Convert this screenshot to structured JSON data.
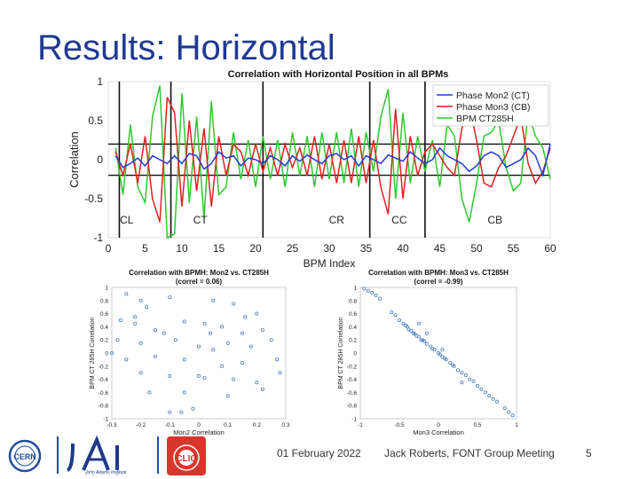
{
  "slide": {
    "title": "Results: Horizontal",
    "footer_date": "01 February 2022",
    "footer_meeting": "Jack Roberts, FONT Group Meeting",
    "page_number": "5",
    "logos": [
      "CERN",
      "JAI John Adams Institute for Accelerator Science",
      "CLIC"
    ]
  },
  "chart_data": [
    {
      "type": "line",
      "title": "Correlation with Horizontal Position in all BPMs",
      "xlabel": "BPM Index",
      "ylabel": "Correlation",
      "xlim": [
        0,
        60
      ],
      "ylim": [
        -1,
        1
      ],
      "xticks": [
        "0",
        "5",
        "10",
        "15",
        "20",
        "25",
        "30",
        "35",
        "40",
        "45",
        "50",
        "55",
        "60"
      ],
      "yticks": [
        "1",
        "0.5",
        "0",
        "-0.5",
        "-1"
      ],
      "grid": false,
      "legend": "top-right",
      "colors": {
        "Phase Mon2 (CT)": "#1f3fd1",
        "Phase Mon3 (CB)": "#e02020",
        "BPM CT285H": "#2ec82e"
      },
      "section_labels": [
        "CL",
        "CT",
        "CR",
        "CC",
        "CB"
      ],
      "section_boundaries": [
        1.5,
        8.5,
        21,
        35.5,
        43
      ],
      "threshold_lines": [
        0.2,
        -0.2
      ],
      "x": [
        1,
        2,
        3,
        4,
        5,
        6,
        7,
        8,
        9,
        10,
        11,
        12,
        13,
        14,
        15,
        16,
        17,
        18,
        19,
        20,
        21,
        22,
        23,
        24,
        25,
        26,
        27,
        28,
        29,
        30,
        31,
        32,
        33,
        34,
        35,
        36,
        37,
        38,
        39,
        40,
        41,
        42,
        43,
        44,
        45,
        46,
        47,
        48,
        49,
        50,
        51,
        52,
        53,
        54,
        55,
        56,
        57,
        58,
        59,
        60
      ],
      "series": [
        {
          "name": "Phase Mon2 (CT)",
          "values": [
            0.05,
            -0.1,
            -0.05,
            0.02,
            -0.08,
            0.05,
            0.0,
            -0.05,
            0.05,
            -0.05,
            0.08,
            0.05,
            -0.12,
            -0.05,
            0.1,
            0.02,
            0.05,
            -0.08,
            0.02,
            0.0,
            -0.05,
            0.05,
            0.0,
            -0.08,
            0.05,
            -0.02,
            0.06,
            0.0,
            -0.05,
            0.05,
            0.08,
            0.0,
            0.05,
            -0.08,
            0.05,
            0.0,
            -0.05,
            0.06,
            0.02,
            -0.02,
            0.1,
            0.02,
            -0.05,
            0.0,
            0.15,
            0.05,
            0.0,
            -0.05,
            -0.15,
            -0.08,
            0.05,
            0.1,
            0.05,
            -0.1,
            -0.05,
            0.0,
            0.15,
            0.05,
            -0.2,
            0.2
          ]
        },
        {
          "name": "Phase Mon3 (CB)",
          "values": [
            0.1,
            -0.2,
            0.2,
            -0.3,
            0.3,
            -0.5,
            -0.8,
            0.8,
            0.6,
            -0.6,
            0.5,
            -0.4,
            0.4,
            -0.6,
            0.3,
            -0.2,
            0.2,
            0.1,
            -0.2,
            0.2,
            -0.15,
            0.15,
            -0.2,
            0.2,
            -0.1,
            0.15,
            -0.2,
            0.3,
            -0.25,
            0.2,
            -0.3,
            0.25,
            -0.3,
            0.3,
            -0.3,
            0.25,
            -0.35,
            -0.7,
            0.65,
            -0.5,
            0.3,
            -0.2,
            0.1,
            0.2,
            0.05,
            -0.1,
            -0.2,
            0.4,
            0.7,
            0.25,
            -0.3,
            -0.35,
            -0.1,
            0.05,
            0.3,
            0.55,
            -0.05,
            -0.3,
            -0.15,
            0.15
          ]
        },
        {
          "name": "BPM CT285H",
          "values": [
            0.15,
            -0.45,
            0.45,
            -0.35,
            -0.55,
            0.55,
            0.95,
            -1.0,
            -0.95,
            0.85,
            -0.55,
            0.55,
            -0.75,
            0.75,
            -0.45,
            -0.35,
            0.35,
            -0.25,
            0.25,
            -0.35,
            0.3,
            -0.25,
            0.25,
            -0.35,
            0.35,
            -0.2,
            0.3,
            -0.35,
            0.35,
            -0.25,
            0.35,
            -0.3,
            0.4,
            -0.35,
            0.35,
            -0.15,
            0.55,
            0.9,
            -0.5,
            0.6,
            -0.3,
            0.3,
            -0.15,
            0.25,
            -0.35,
            0.45,
            0.3,
            -0.5,
            -0.8,
            -0.3,
            0.3,
            0.35,
            0.5,
            -0.1,
            -0.4,
            -0.3,
            0.6,
            0.3,
            0.15,
            -0.25
          ]
        }
      ]
    },
    {
      "type": "scatter",
      "title": "Correlation with BPMH: Mon2 vs. CT285H",
      "subtitle": "(correl = 0.06)",
      "xlabel": "Mon2 Correlation",
      "ylabel": "BPM CT 285H Correlation",
      "xlim": [
        -0.3,
        0.3
      ],
      "ylim": [
        -1,
        1
      ],
      "xticks": [
        "-0.3",
        "-0.2",
        "-0.1",
        "0",
        "0.1",
        "0.2",
        "0.3"
      ],
      "yticks": [
        "1",
        "0.8",
        "0.6",
        "0.4",
        "0.2",
        "0",
        "-0.2",
        "-0.4",
        "-0.6",
        "-0.8",
        "-1"
      ],
      "color": "#4a7fc0",
      "points": [
        [
          -0.25,
          0.9
        ],
        [
          -0.2,
          0.8
        ],
        [
          -0.18,
          0.7
        ],
        [
          -0.1,
          0.85
        ],
        [
          0.05,
          0.8
        ],
        [
          0.12,
          0.75
        ],
        [
          0.2,
          0.6
        ],
        [
          -0.27,
          0.5
        ],
        [
          -0.22,
          0.45
        ],
        [
          -0.15,
          0.35
        ],
        [
          -0.12,
          0.3
        ],
        [
          -0.05,
          0.48
        ],
        [
          0.02,
          0.45
        ],
        [
          0.08,
          0.4
        ],
        [
          0.15,
          0.3
        ],
        [
          0.22,
          0.35
        ],
        [
          -0.28,
          0.2
        ],
        [
          -0.2,
          0.15
        ],
        [
          -0.08,
          0.2
        ],
        [
          0.0,
          0.1
        ],
        [
          0.05,
          0.05
        ],
        [
          0.1,
          0.15
        ],
        [
          0.18,
          0.1
        ],
        [
          0.25,
          0.2
        ],
        [
          -0.25,
          -0.1
        ],
        [
          -0.15,
          -0.05
        ],
        [
          -0.05,
          -0.1
        ],
        [
          0.0,
          -0.35
        ],
        [
          0.02,
          -0.38
        ],
        [
          0.08,
          -0.2
        ],
        [
          0.15,
          -0.15
        ],
        [
          0.27,
          -0.1
        ],
        [
          -0.2,
          -0.3
        ],
        [
          -0.1,
          -0.35
        ],
        [
          0.12,
          -0.4
        ],
        [
          0.2,
          -0.45
        ],
        [
          -0.17,
          -0.6
        ],
        [
          -0.05,
          -0.6
        ],
        [
          0.1,
          -0.65
        ],
        [
          0.22,
          -0.55
        ],
        [
          -0.02,
          -0.85
        ],
        [
          -0.06,
          -0.9
        ],
        [
          -0.1,
          -0.9
        ],
        [
          0.28,
          -0.3
        ],
        [
          -0.3,
          0.0
        ],
        [
          0.04,
          0.3
        ],
        [
          -0.22,
          0.55
        ],
        [
          0.16,
          0.55
        ]
      ]
    },
    {
      "type": "scatter",
      "title": "Correlation with BPMH: Mon3 vs. CT285H",
      "subtitle": "(correl = -0.99)",
      "xlabel": "Mon3 Correlation",
      "ylabel": "BPM CT 285H Correlation",
      "xlim": [
        -1,
        1
      ],
      "ylim": [
        -1,
        1
      ],
      "xticks": [
        "-1",
        "-0.5",
        "0",
        "0.5",
        "1"
      ],
      "yticks": [
        "1",
        "0.8",
        "0.6",
        "0.4",
        "0.2",
        "0",
        "-0.2",
        "-0.4",
        "-0.6",
        "-0.8",
        "-1"
      ],
      "color": "#4a7fc0",
      "points": [
        [
          -0.95,
          0.98
        ],
        [
          -0.9,
          0.95
        ],
        [
          -0.85,
          0.92
        ],
        [
          -0.8,
          0.88
        ],
        [
          -0.75,
          0.83
        ],
        [
          -0.6,
          0.62
        ],
        [
          -0.55,
          0.58
        ],
        [
          -0.5,
          0.5
        ],
        [
          -0.45,
          0.45
        ],
        [
          -0.42,
          0.42
        ],
        [
          -0.4,
          0.4
        ],
        [
          -0.38,
          0.36
        ],
        [
          -0.35,
          0.34
        ],
        [
          -0.32,
          0.3
        ],
        [
          -0.3,
          0.29
        ],
        [
          -0.28,
          0.26
        ],
        [
          -0.25,
          0.25
        ],
        [
          -0.22,
          0.2
        ],
        [
          -0.2,
          0.2
        ],
        [
          -0.18,
          0.18
        ],
        [
          -0.15,
          0.14
        ],
        [
          -0.1,
          0.1
        ],
        [
          -0.08,
          0.07
        ],
        [
          -0.05,
          0.05
        ],
        [
          0.0,
          0.0
        ],
        [
          0.02,
          -0.02
        ],
        [
          0.05,
          -0.06
        ],
        [
          0.08,
          -0.08
        ],
        [
          0.1,
          -0.1
        ],
        [
          0.15,
          -0.15
        ],
        [
          0.18,
          -0.18
        ],
        [
          0.2,
          -0.2
        ],
        [
          0.25,
          -0.26
        ],
        [
          0.3,
          -0.3
        ],
        [
          0.35,
          -0.34
        ],
        [
          0.4,
          -0.4
        ],
        [
          0.45,
          -0.43
        ],
        [
          0.5,
          -0.5
        ],
        [
          0.55,
          -0.55
        ],
        [
          0.6,
          -0.6
        ],
        [
          0.65,
          -0.65
        ],
        [
          0.7,
          -0.7
        ],
        [
          0.75,
          -0.74
        ],
        [
          0.85,
          -0.84
        ],
        [
          0.9,
          -0.9
        ],
        [
          0.95,
          -0.95
        ],
        [
          -0.25,
          0.45
        ],
        [
          -0.15,
          0.3
        ],
        [
          0.05,
          0.05
        ],
        [
          0.3,
          -0.45
        ]
      ]
    }
  ]
}
